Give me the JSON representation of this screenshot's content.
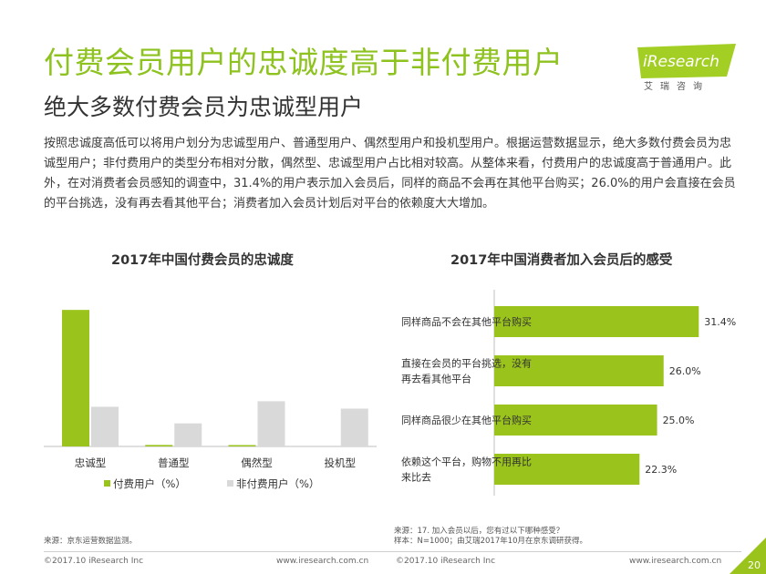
{
  "header": {
    "title": "付费会员用户的忠诚度高于非付费用户",
    "subtitle": "绝大多数付费会员为忠诚型用户",
    "logo_text": "iResearch",
    "logo_sub": "艾瑞咨询"
  },
  "body_text": "按照忠诚度高低可以将用户划分为忠诚型用户、普通型用户、偶然型用户和投机型用户。根据运营数据显示，绝大多数付费会员为忠诚型用户；非付费用户的类型分布相对分散，偶然型、忠诚型用户占比相对较高。从整体来看，付费用户的忠诚度高于普通用户。此外，在对消费者会员感知的调查中，31.4%的用户表示加入会员后，同样的商品不会再在其他平台购买；26.0%的用户会直接在会员的平台挑选，没有再去看其他平台；消费者加入会员计划后对平台的依赖度大大增加。",
  "chart_data": [
    {
      "type": "bar",
      "title": "2017年中国付费会员的忠诚度",
      "categories": [
        "忠诚型",
        "普通型",
        "偶然型",
        "投机型"
      ],
      "series": [
        {
          "name": "付费用户（%）",
          "color": "#9ac31c",
          "values": [
            74,
            0.8,
            0.5,
            0
          ]
        },
        {
          "name": "非付费用户（%）",
          "color": "#d9d9d9",
          "values": [
            21.5,
            12.5,
            24.5,
            20.5
          ]
        }
      ],
      "ylim": [
        0,
        80
      ],
      "grid": false,
      "legend": "bottom"
    },
    {
      "type": "bar",
      "orientation": "horizontal",
      "title": "2017年中国消费者加入会员后的感受",
      "categories": [
        [
          "同样商品不会在其他平台购买"
        ],
        [
          "直接在会员的平台挑选，没有",
          "再去看其他平台"
        ],
        [
          "同样商品很少在其他平台购买"
        ],
        [
          "依赖这个平台，购物不用再比",
          "来比去"
        ]
      ],
      "values": [
        31.4,
        26.0,
        25.0,
        22.3
      ],
      "value_labels": [
        "31.4%",
        "26.0%",
        "25.0%",
        "22.3%"
      ],
      "color": "#9ac31c",
      "xlim": [
        0,
        35
      ]
    }
  ],
  "sources": {
    "left": "来源：京东运营数据监测。",
    "right_line1": "来源：17. 加入会员以后，您有过以下哪种感受？",
    "right_line2": "样本：N=1000；由艾瑞2017年10月在京东调研获得。"
  },
  "footer": {
    "left_copyright": "©2017.10 iResearch Inc",
    "left_url": "www.iresearch.com.cn",
    "right_copyright": "©2017.10 iResearch Inc",
    "right_url": "www.iresearch.com.cn",
    "page_number": "20"
  },
  "colors": {
    "accent": "#8dc21f",
    "bar_green": "#9ac31c",
    "bar_gray": "#d9d9d9"
  }
}
